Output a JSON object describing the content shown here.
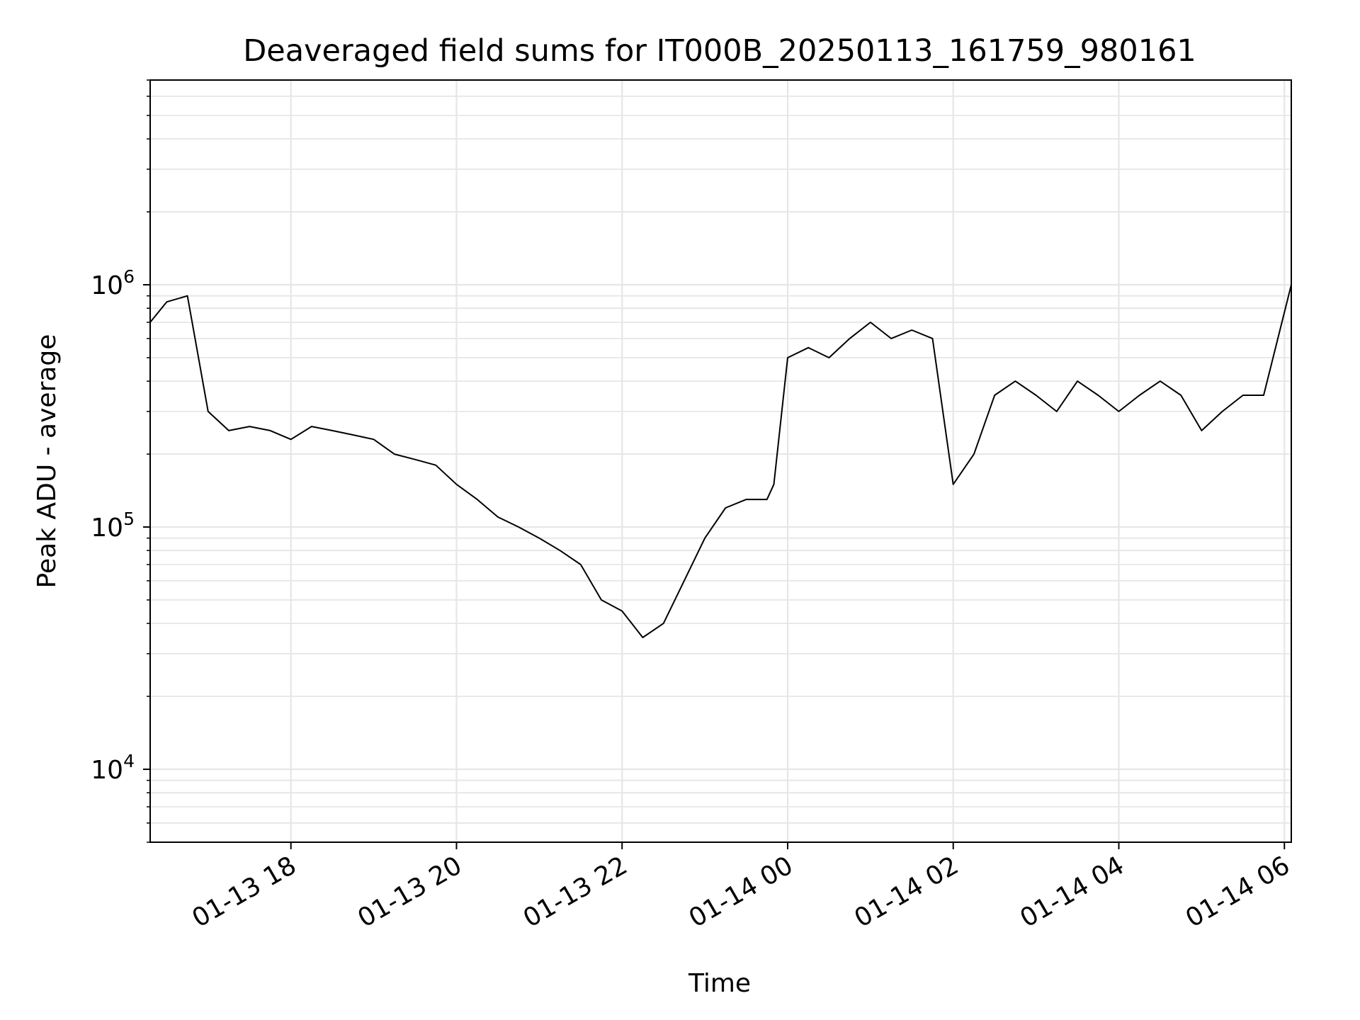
{
  "chart_data": {
    "type": "line",
    "title": "Deaveraged field sums for IT000B_20250113_161759_980161",
    "xlabel": "Time",
    "ylabel": "Peak ADU - average",
    "yscale": "log",
    "grid": true,
    "colors": {
      "line": "#000000",
      "grid": "#e6e6e6",
      "axes": "#000000"
    },
    "xlim": [
      "2025-01-13 16:18",
      "2025-01-14 06:05"
    ],
    "ylim": [
      5000,
      7000000
    ],
    "x_ticks": [
      "2025-01-13 18:00",
      "2025-01-13 20:00",
      "2025-01-13 22:00",
      "2025-01-14 00:00",
      "2025-01-14 02:00",
      "2025-01-14 04:00",
      "2025-01-14 06:00"
    ],
    "x_tick_labels": [
      "01-13 18",
      "01-13 20",
      "01-13 22",
      "01-14 00",
      "01-14 02",
      "01-14 04",
      "01-14 06"
    ],
    "y_ticks": [
      10000,
      100000,
      1000000
    ],
    "y_tick_labels": [
      {
        "base": "10",
        "exp": "4"
      },
      {
        "base": "10",
        "exp": "5"
      },
      {
        "base": "10",
        "exp": "6"
      }
    ],
    "series": [
      {
        "x": [
          "2025-01-13 16:18",
          "2025-01-13 16:30",
          "2025-01-13 16:45",
          "2025-01-13 17:00",
          "2025-01-13 17:15",
          "2025-01-13 17:30",
          "2025-01-13 17:45",
          "2025-01-13 18:00",
          "2025-01-13 18:15",
          "2025-01-13 18:30",
          "2025-01-13 18:45",
          "2025-01-13 19:00",
          "2025-01-13 19:15",
          "2025-01-13 19:30",
          "2025-01-13 19:45",
          "2025-01-13 20:00",
          "2025-01-13 20:15",
          "2025-01-13 20:30",
          "2025-01-13 20:45",
          "2025-01-13 21:00",
          "2025-01-13 21:15",
          "2025-01-13 21:30",
          "2025-01-13 21:45",
          "2025-01-13 22:00",
          "2025-01-13 22:15",
          "2025-01-13 22:30",
          "2025-01-13 22:45",
          "2025-01-13 23:00",
          "2025-01-13 23:15",
          "2025-01-13 23:30",
          "2025-01-13 23:45",
          "2025-01-13 23:50",
          "2025-01-14 00:00",
          "2025-01-14 00:15",
          "2025-01-14 00:30",
          "2025-01-14 00:45",
          "2025-01-14 01:00",
          "2025-01-14 01:15",
          "2025-01-14 01:30",
          "2025-01-14 01:45",
          "2025-01-14 02:00",
          "2025-01-14 02:15",
          "2025-01-14 02:30",
          "2025-01-14 02:45",
          "2025-01-14 03:00",
          "2025-01-14 03:15",
          "2025-01-14 03:30",
          "2025-01-14 03:45",
          "2025-01-14 04:00",
          "2025-01-14 04:15",
          "2025-01-14 04:30",
          "2025-01-14 04:45",
          "2025-01-14 05:00",
          "2025-01-14 05:15",
          "2025-01-14 05:30",
          "2025-01-14 05:45",
          "2025-01-14 06:05"
        ],
        "values": [
          700000,
          850000,
          900000,
          300000,
          250000,
          260000,
          250000,
          230000,
          260000,
          250000,
          240000,
          230000,
          200000,
          190000,
          180000,
          150000,
          130000,
          110000,
          100000,
          90000,
          80000,
          70000,
          50000,
          45000,
          35000,
          40000,
          60000,
          90000,
          120000,
          130000,
          130000,
          150000,
          500000,
          550000,
          500000,
          600000,
          700000,
          600000,
          650000,
          600000,
          150000,
          200000,
          350000,
          400000,
          350000,
          300000,
          400000,
          350000,
          300000,
          350000,
          400000,
          350000,
          250000,
          300000,
          350000,
          350000,
          1000000
        ]
      }
    ]
  }
}
